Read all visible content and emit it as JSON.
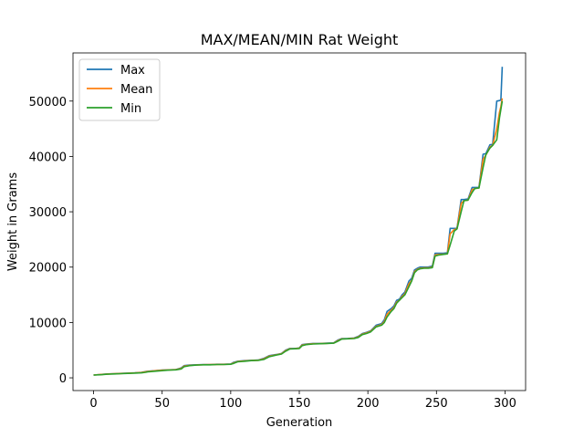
{
  "chart_data": {
    "type": "line",
    "title": "MAX/MEAN/MIN Rat Weight",
    "xlabel": "Generation",
    "ylabel": "Weight in Grams",
    "xlim": [
      -15,
      315
    ],
    "ylim": [
      -2300,
      58700
    ],
    "xticks": [
      0,
      50,
      100,
      150,
      200,
      250,
      300
    ],
    "yticks": [
      0,
      10000,
      20000,
      30000,
      40000,
      50000
    ],
    "grid": false,
    "legend_position": "top-left",
    "series": [
      {
        "name": "Max",
        "color": "#1f77b4",
        "x": [
          0,
          5,
          10,
          15,
          20,
          25,
          30,
          35,
          38,
          40,
          45,
          50,
          55,
          60,
          64,
          66,
          70,
          75,
          80,
          85,
          90,
          95,
          100,
          102,
          105,
          110,
          115,
          120,
          124,
          128,
          133,
          137,
          140,
          143,
          147,
          150,
          152,
          155,
          160,
          165,
          170,
          175,
          178,
          181,
          185,
          190,
          193,
          196,
          199,
          202,
          206,
          210,
          212,
          214,
          217,
          219,
          221,
          223,
          225,
          227,
          230,
          232,
          234,
          236,
          238,
          241,
          244,
          247,
          249,
          252,
          255,
          258,
          260,
          263,
          265,
          268,
          270,
          273,
          276,
          278,
          281,
          284,
          286,
          289,
          291,
          294,
          296,
          297,
          298
        ],
        "y": [
          500,
          600,
          700,
          750,
          800,
          850,
          900,
          1000,
          1150,
          1200,
          1300,
          1400,
          1450,
          1500,
          1800,
          2200,
          2300,
          2350,
          2400,
          2400,
          2450,
          2450,
          2500,
          2800,
          3000,
          3100,
          3150,
          3200,
          3500,
          4000,
          4200,
          4400,
          5000,
          5300,
          5300,
          5400,
          6000,
          6100,
          6200,
          6200,
          6250,
          6300,
          6800,
          7100,
          7100,
          7200,
          7500,
          8000,
          8200,
          8500,
          9500,
          9800,
          10500,
          12000,
          12500,
          13000,
          14000,
          14200,
          15000,
          15500,
          17500,
          18000,
          19500,
          19800,
          20000,
          20000,
          20000,
          20200,
          22500,
          22500,
          22500,
          22600,
          27000,
          27000,
          27000,
          32200,
          32200,
          32300,
          34400,
          34400,
          34400,
          40400,
          40500,
          42100,
          42200,
          50000,
          50100,
          50200,
          56200
        ]
      },
      {
        "name": "Mean",
        "color": "#ff7f0e",
        "x": [
          0,
          5,
          10,
          15,
          20,
          25,
          30,
          35,
          38,
          40,
          45,
          50,
          55,
          60,
          64,
          66,
          70,
          75,
          80,
          85,
          90,
          95,
          100,
          102,
          105,
          110,
          115,
          120,
          124,
          128,
          133,
          137,
          140,
          143,
          147,
          150,
          152,
          155,
          160,
          165,
          170,
          175,
          178,
          181,
          185,
          190,
          193,
          196,
          199,
          202,
          206,
          210,
          212,
          214,
          217,
          219,
          221,
          223,
          225,
          227,
          230,
          232,
          234,
          236,
          238,
          241,
          244,
          247,
          249,
          252,
          255,
          258,
          260,
          263,
          265,
          268,
          270,
          273,
          276,
          278,
          281,
          284,
          286,
          289,
          291,
          294,
          296,
          297,
          298
        ],
        "y": [
          500,
          600,
          680,
          730,
          780,
          830,
          880,
          960,
          1100,
          1170,
          1270,
          1370,
          1420,
          1480,
          1700,
          2100,
          2250,
          2320,
          2370,
          2380,
          2420,
          2430,
          2470,
          2700,
          2950,
          3050,
          3120,
          3170,
          3400,
          3900,
          4150,
          4350,
          4900,
          5250,
          5270,
          5350,
          5900,
          6050,
          6150,
          6170,
          6220,
          6270,
          6700,
          7050,
          7070,
          7150,
          7400,
          7900,
          8100,
          8400,
          9300,
          9600,
          10200,
          11500,
          12200,
          12700,
          13700,
          14000,
          14700,
          15200,
          17000,
          17600,
          19200,
          19600,
          19800,
          19850,
          19850,
          20000,
          22200,
          22300,
          22350,
          22400,
          26000,
          26800,
          26900,
          31500,
          32000,
          32100,
          34000,
          34200,
          34300,
          39500,
          40200,
          41700,
          42000,
          45000,
          48000,
          49000,
          50500
        ]
      },
      {
        "name": "Min",
        "color": "#2ca02c",
        "x": [
          0,
          5,
          10,
          15,
          20,
          25,
          30,
          35,
          38,
          40,
          45,
          50,
          55,
          60,
          64,
          66,
          70,
          75,
          80,
          85,
          90,
          95,
          100,
          102,
          105,
          110,
          115,
          120,
          124,
          128,
          133,
          137,
          140,
          143,
          147,
          150,
          152,
          155,
          160,
          165,
          170,
          175,
          178,
          181,
          185,
          190,
          193,
          196,
          199,
          202,
          206,
          210,
          212,
          214,
          217,
          219,
          221,
          223,
          225,
          227,
          230,
          232,
          234,
          236,
          238,
          241,
          244,
          247,
          249,
          252,
          255,
          258,
          260,
          263,
          265,
          268,
          270,
          273,
          276,
          278,
          281,
          284,
          286,
          289,
          291,
          294,
          296,
          297,
          298
        ],
        "y": [
          500,
          550,
          650,
          700,
          750,
          800,
          850,
          900,
          1000,
          1100,
          1200,
          1300,
          1400,
          1450,
          1600,
          2000,
          2200,
          2300,
          2350,
          2350,
          2400,
          2400,
          2450,
          2600,
          2900,
          3000,
          3100,
          3150,
          3300,
          3800,
          4100,
          4300,
          4800,
          5200,
          5250,
          5300,
          5800,
          6000,
          6100,
          6150,
          6200,
          6250,
          6600,
          7000,
          7050,
          7100,
          7300,
          7800,
          8000,
          8300,
          9200,
          9500,
          10000,
          11000,
          12000,
          12500,
          13500,
          14000,
          14500,
          15000,
          16500,
          17500,
          19000,
          19500,
          19700,
          19800,
          19800,
          19900,
          22000,
          22200,
          22300,
          22400,
          24000,
          26500,
          26900,
          30000,
          32000,
          32100,
          33500,
          34200,
          34300,
          38000,
          40300,
          41500,
          42000,
          43000,
          47000,
          48500,
          50000
        ]
      }
    ]
  }
}
